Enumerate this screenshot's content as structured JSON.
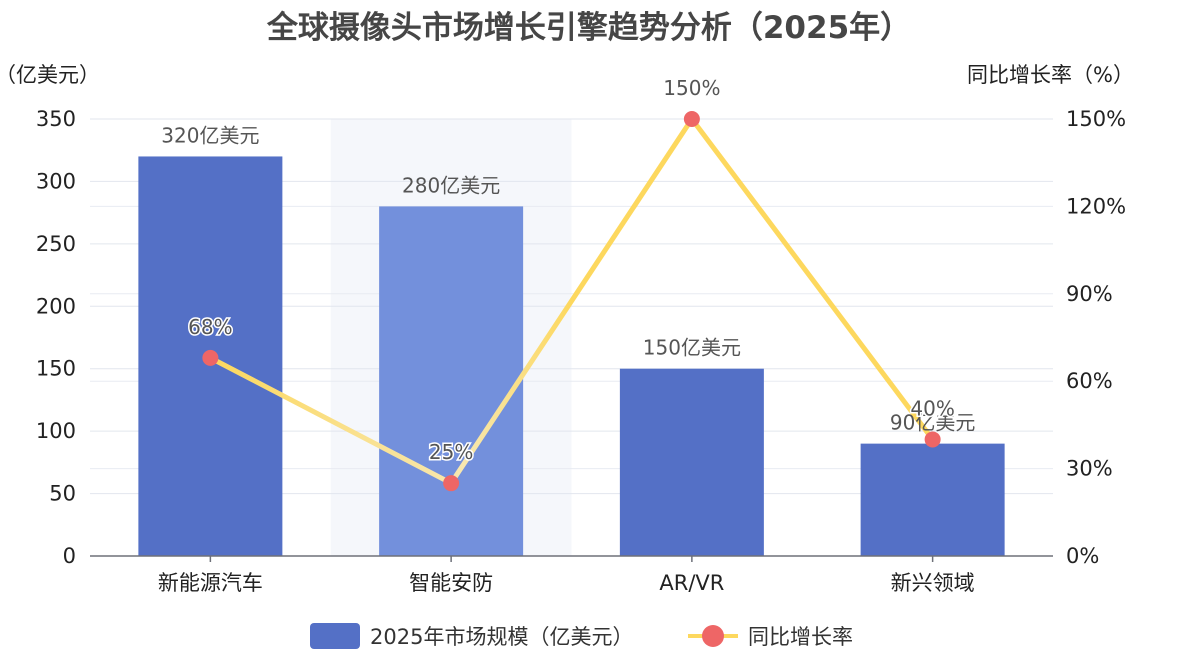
{
  "chart_data": {
    "type": "bar",
    "title": "全球摄像头市场增长引擎趋势分析（2025年）",
    "categories": [
      "新能源汽车",
      "智能安防",
      "AR/VR",
      "新兴领域"
    ],
    "highlight_category": "智能安防",
    "y_left": {
      "name": "市场规模（亿美元）",
      "min": 0,
      "max": 350,
      "ticks": [
        "0",
        "50",
        "100",
        "150",
        "200",
        "250",
        "300",
        "350"
      ]
    },
    "y_right": {
      "name": "同比增长率（%）",
      "min": 0,
      "max": 150,
      "ticks": [
        "0%",
        "30%",
        "60%",
        "90%",
        "120%",
        "150%"
      ]
    },
    "grid": true,
    "legend_position": "bottom",
    "series": [
      {
        "name": "2025年市场规模（亿美元）",
        "type": "bar",
        "axis": "left",
        "color": "#5470c6",
        "highlight_color": "#7390dc",
        "values": [
          320,
          280,
          150,
          90
        ],
        "labels": [
          "320亿美元",
          "280亿美元",
          "150亿美元",
          "90亿美元"
        ]
      },
      {
        "name": "同比增长率",
        "type": "line",
        "axis": "right",
        "color": "#fdd85e",
        "marker_color": "#ee6666",
        "values": [
          68,
          25,
          150,
          40
        ],
        "labels": [
          "68%",
          "25%",
          "150%",
          "40%"
        ]
      }
    ]
  }
}
